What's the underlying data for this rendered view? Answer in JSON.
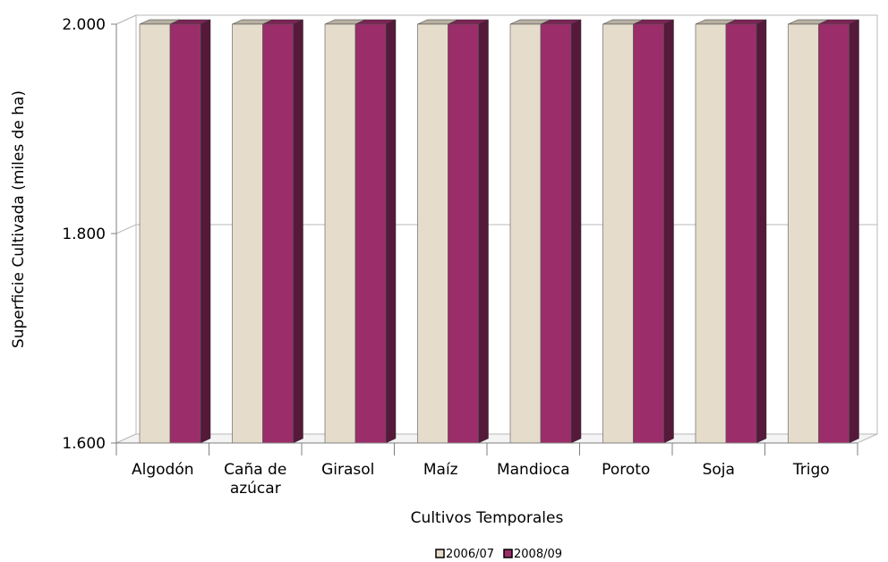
{
  "chart_data": {
    "type": "bar",
    "title": "",
    "xlabel": "Cultivos Temporales",
    "ylabel": "Superficie Cultivada (miles de ha)",
    "categories": [
      "Algodón",
      "Caña de azúcar",
      "Girasol",
      "Maíz",
      "Mandioca",
      "Poroto",
      "Soja",
      "Trigo"
    ],
    "category_lines": [
      [
        "Algodón"
      ],
      [
        "Caña de",
        "azúcar"
      ],
      [
        "Girasol"
      ],
      [
        "Maíz"
      ],
      [
        "Mandioca"
      ],
      [
        "Poroto"
      ],
      [
        "Soja"
      ],
      [
        "Trigo"
      ]
    ],
    "series": [
      {
        "name": "2006/07",
        "values": [
          2000,
          2000,
          2000,
          2000,
          2000,
          2000,
          2000,
          2000
        ],
        "color": "#e6dccb"
      },
      {
        "name": "2008/09",
        "values": [
          2000,
          2000,
          2000,
          2000,
          2000,
          2000,
          2000,
          2000
        ],
        "color": "#9b2d6a"
      }
    ],
    "ylim": [
      1600,
      2000
    ],
    "yticks": [
      1600,
      1800,
      2000
    ],
    "ytick_labels": [
      "1.600",
      "1.800",
      "2.000"
    ],
    "grid": true,
    "legend_position": "bottom",
    "style": "3d-bar"
  }
}
